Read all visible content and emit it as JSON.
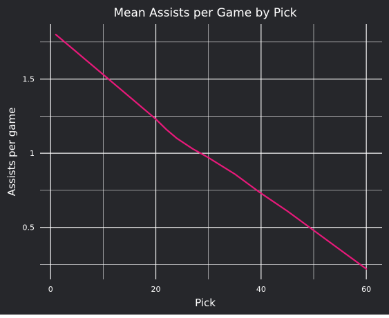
{
  "colors": {
    "background": "#26272b",
    "grid": "#ffffff",
    "text": "#ffffff",
    "line": "#e8197a"
  },
  "chart_data": {
    "type": "line",
    "title": "Mean Assists per Game by Pick",
    "xlabel": "Pick",
    "ylabel": "Assists per game",
    "xlim": [
      -2,
      63
    ],
    "ylim": [
      0.15,
      1.87
    ],
    "xticks": [
      0,
      20,
      40,
      60
    ],
    "xtick_labels": [
      "0",
      "20",
      "40",
      "60"
    ],
    "x_minor_ticks": [
      10,
      30,
      50
    ],
    "yticks": [
      0.5,
      1,
      1.5
    ],
    "ytick_labels": [
      "0.5",
      "1",
      "1.5"
    ],
    "y_minor_ticks": [
      0.25,
      0.75,
      1.25,
      1.75
    ],
    "grid": true,
    "legend": false,
    "series": [
      {
        "x": [
          1,
          5,
          10,
          15,
          20,
          22,
          24,
          27,
          30,
          35,
          40,
          45,
          50,
          55,
          60
        ],
        "y": [
          1.8,
          1.68,
          1.53,
          1.38,
          1.23,
          1.16,
          1.1,
          1.03,
          0.97,
          0.86,
          0.73,
          0.61,
          0.48,
          0.35,
          0.22
        ]
      }
    ]
  }
}
